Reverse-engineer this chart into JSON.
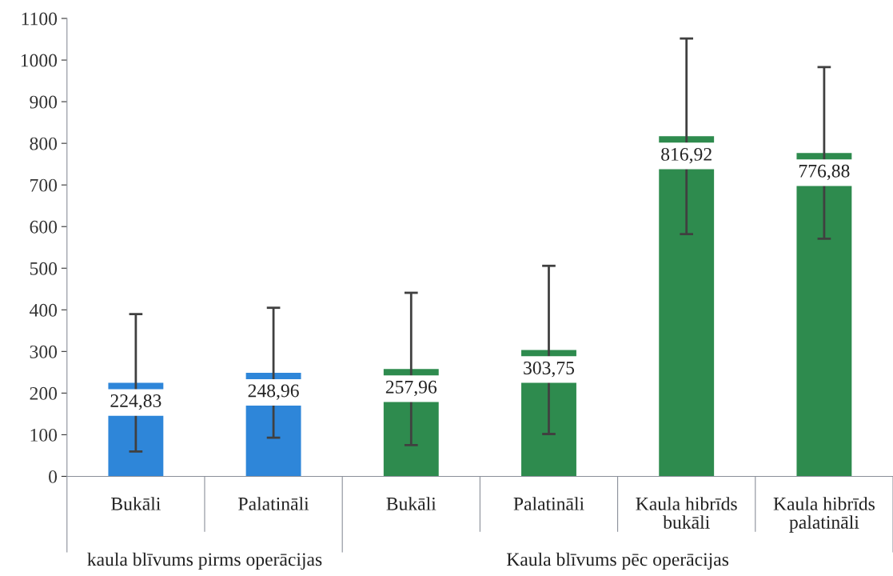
{
  "chart_data": {
    "type": "bar",
    "categories": [
      "Bukāli",
      "Palatināli",
      "Bukāli",
      "Palatināli",
      "Kaula hibrīds\nbukāli",
      "Kaula hibrīds\npalatināli"
    ],
    "values": [
      224.83,
      248.96,
      257.96,
      303.75,
      816.92,
      776.88
    ],
    "colors": [
      "#2e86d9",
      "#2e86d9",
      "#2e8b4e",
      "#2e8b4e",
      "#2e8b4e",
      "#2e8b4e"
    ],
    "errors": [
      165,
      156,
      183,
      202,
      235,
      206
    ],
    "value_labels": [
      "224,83",
      "248,96",
      "257,96",
      "303,75",
      "816,92",
      "776,88"
    ],
    "annotations": [
      "kaula blīvums pirms operācijas",
      "Kaula blīvums pēc operācijas"
    ],
    "ylim": [
      0,
      1100
    ],
    "yticks": [
      0,
      100,
      200,
      300,
      400,
      500,
      600,
      700,
      800,
      900,
      1000,
      1100
    ],
    "grid": false
  }
}
